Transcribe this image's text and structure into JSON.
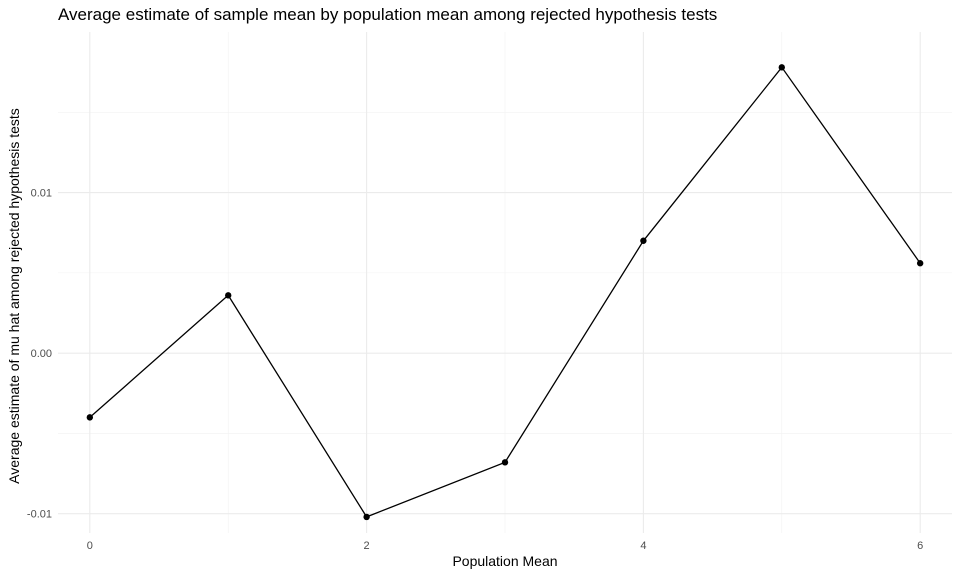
{
  "chart_data": {
    "type": "line",
    "title": "Average estimate of sample mean by population mean among rejected hypothesis tests",
    "xlabel": "Population Mean",
    "ylabel": "Average estimate of mu hat among rejected hypothesis tests",
    "x": [
      0,
      1,
      2,
      3,
      4,
      5,
      6
    ],
    "y": [
      -0.004,
      0.0036,
      -0.0102,
      -0.0068,
      0.007,
      0.0178,
      0.0056
    ],
    "xlim": [
      -0.23,
      6.23
    ],
    "ylim": [
      -0.0112,
      0.02
    ],
    "x_ticks": [
      0,
      2,
      4,
      6
    ],
    "x_tick_labels": [
      "0",
      "2",
      "4",
      "6"
    ],
    "y_ticks": [
      -0.01,
      0.0,
      0.01
    ],
    "y_tick_labels": [
      "-0.01",
      "0.00",
      "0.01"
    ],
    "grid": true,
    "legend": "none",
    "line_color": "#000000",
    "point_color": "#000000"
  }
}
